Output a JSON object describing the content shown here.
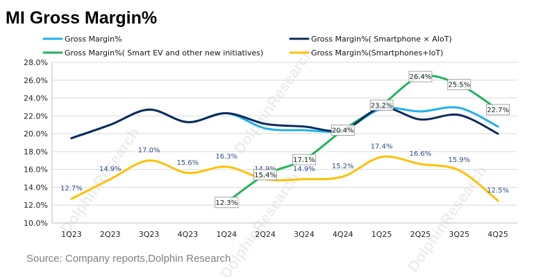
{
  "chart_data": {
    "type": "line",
    "title": "MI Gross Margin%",
    "source": "Source: Company reports,Dolphin Research",
    "watermark": "DolphinResearch",
    "categories": [
      "1Q23",
      "2Q23",
      "3Q23",
      "4Q23",
      "1Q24",
      "2Q24",
      "3Q24",
      "4Q24",
      "1Q25",
      "2Q25",
      "3Q25",
      "4Q25"
    ],
    "ylim": [
      10,
      28
    ],
    "ytick_labels": [
      "10.0%",
      "12.0%",
      "14.0%",
      "16.0%",
      "18.0%",
      "20.0%",
      "22.0%",
      "24.0%",
      "26.0%",
      "28.0%"
    ],
    "series": [
      {
        "key": "gm",
        "name": "Gross Margin%",
        "color": "#1fb0ea",
        "values": [
          19.5,
          21.0,
          22.7,
          21.3,
          22.3,
          20.6,
          20.4,
          20.4,
          22.8,
          22.5,
          22.9,
          20.8
        ],
        "labels": [
          null,
          null,
          null,
          null,
          null,
          null,
          null,
          null,
          null,
          null,
          null,
          null
        ]
      },
      {
        "key": "phone_aiot",
        "name": "Gross Margin%( Smartphone × AIoT)",
        "color": "#0d2a5c",
        "values": [
          19.5,
          21.0,
          22.7,
          21.3,
          22.3,
          21.1,
          20.8,
          20.4,
          22.9,
          21.6,
          22.1,
          20.0
        ],
        "labels": [
          null,
          null,
          null,
          null,
          null,
          null,
          null,
          null,
          null,
          null,
          null,
          null
        ]
      },
      {
        "key": "ev",
        "name": "Gross Margin%( Smart EV and other new initiatives)",
        "color": "#1fb35a",
        "values": [
          null,
          null,
          null,
          null,
          12.3,
          15.4,
          17.1,
          20.4,
          23.2,
          26.4,
          25.5,
          22.7
        ],
        "labels": [
          null,
          null,
          null,
          null,
          "12.3%",
          "15.4%",
          "17.1%",
          "20.4%",
          "23.2%",
          "26.4%",
          "25.5%",
          "22.7%"
        ]
      },
      {
        "key": "phone_iot",
        "name": "Gross Margin%(Smartphones+IoT)",
        "color": "#ffc000",
        "values": [
          12.7,
          14.9,
          17.0,
          15.6,
          16.3,
          14.9,
          14.9,
          15.2,
          17.4,
          16.6,
          15.9,
          12.5
        ],
        "labels": [
          "12.7%",
          "14.9%",
          "17.0%",
          "15.6%",
          "16.3%",
          "14.9%",
          "14.9%",
          "15.2%",
          "17.4%",
          "16.6%",
          "15.9%",
          "12.5%"
        ]
      }
    ]
  }
}
